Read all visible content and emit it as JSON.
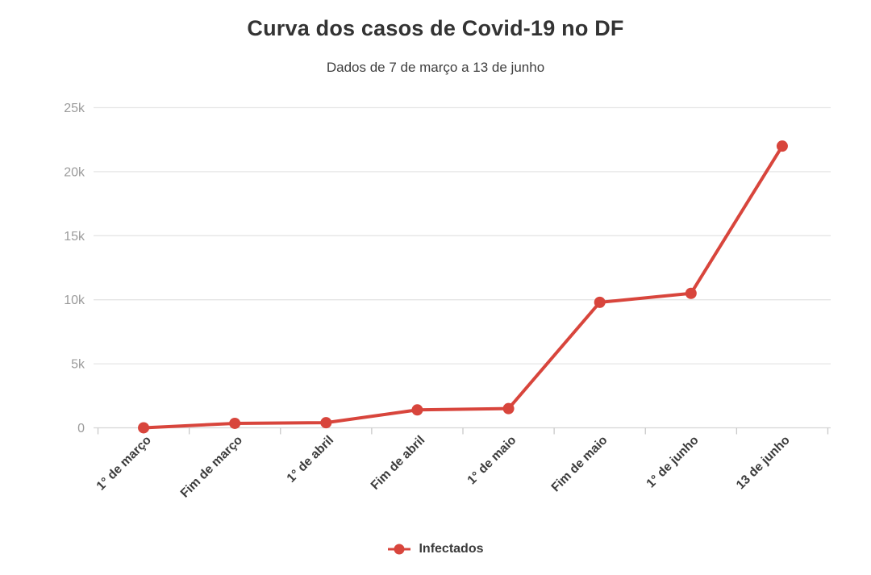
{
  "chart": {
    "title": "Curva dos casos de Covid-19 no DF",
    "subtitle": "Dados de 7 de março a 13 de junho"
  },
  "legend": {
    "items": [
      {
        "label": "Infectados",
        "marker": "line-dot-marker-icon",
        "color": "#d8453c"
      }
    ]
  },
  "colors": {
    "series": "#d8453c",
    "gridline": "#e5e5e5",
    "zero_line": "#d6d6d6",
    "tick": "#c9c9c9",
    "y_label_text": "#9b9b9b",
    "x_label_text": "#3b3b3b",
    "title_text": "#333333",
    "subtitle_text": "#3f3f3f"
  },
  "chart_data": {
    "type": "line",
    "title": "Curva dos casos de Covid-19 no DF",
    "subtitle": "Dados de 7 de março a 13 de junho",
    "categories": [
      "1° de março",
      "Fim de março",
      "1° de abril",
      "Fim de abril",
      "1° de maio",
      "Fim de maio",
      "1° de junho",
      "13 de junho"
    ],
    "series": [
      {
        "name": "Infectados",
        "color": "#d8453c",
        "values": [
          1,
          350,
          400,
          1400,
          1500,
          9800,
          10500,
          22000
        ]
      }
    ],
    "xlabel": "",
    "ylabel": "",
    "ylim": [
      0,
      25000
    ],
    "yticks": {
      "values": [
        0,
        5000,
        10000,
        15000,
        20000,
        25000
      ],
      "labels": [
        "0",
        "5k",
        "10k",
        "15k",
        "20k",
        "25k"
      ]
    },
    "grid": true,
    "legend_position": "bottom"
  }
}
